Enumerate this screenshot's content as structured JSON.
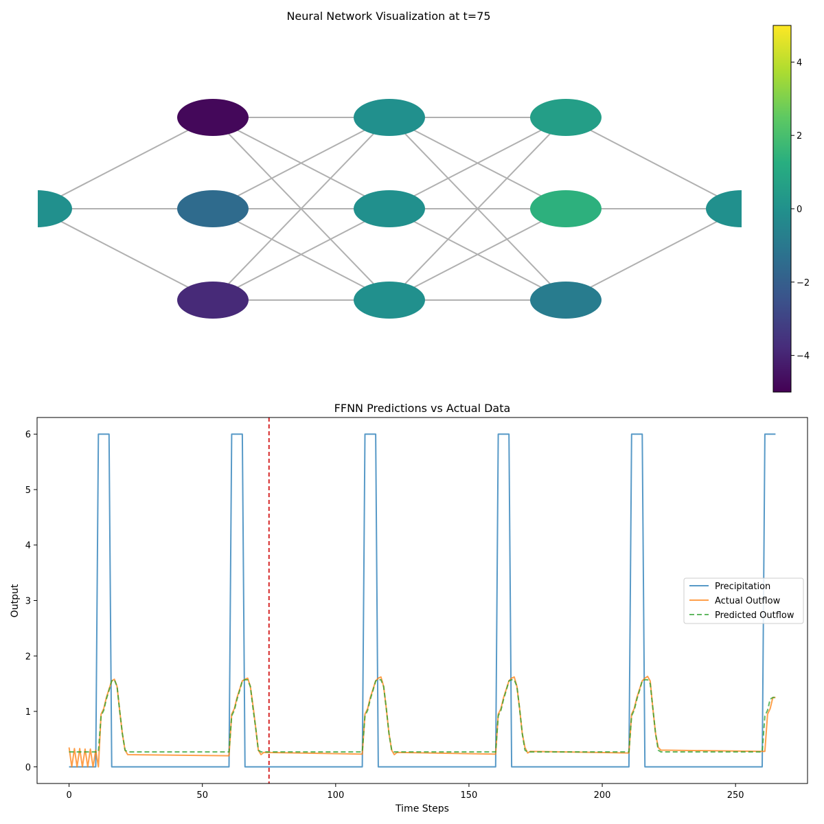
{
  "chart_data": [
    {
      "type": "network",
      "title": "Neural Network Visualization at t=75",
      "layers": [
        [
          0.0
        ],
        [
          -4.8,
          -1.5,
          -3.8
        ],
        [
          0.0,
          0.0,
          0.0
        ],
        [
          0.6,
          1.4,
          -0.8
        ],
        [
          0.0
        ]
      ],
      "colorbar": {
        "vmin": -5,
        "vmax": 5,
        "ticks": [
          -4,
          -2,
          0,
          2,
          4
        ],
        "colormap": "viridis"
      }
    },
    {
      "type": "line",
      "title": "FFNN Predictions vs Actual Data",
      "xlabel": "Time Steps",
      "ylabel": "Output",
      "xlim": [
        -12,
        277
      ],
      "ylim": [
        -0.3,
        6.3
      ],
      "xticks": [
        0,
        50,
        100,
        150,
        200,
        250
      ],
      "yticks": [
        0,
        1,
        2,
        3,
        4,
        5,
        6
      ],
      "marker_x": 75,
      "legend": "center-right",
      "series": [
        {
          "name": "Precipitation",
          "color": "#1f77b4",
          "style": "solid",
          "x": [
            0,
            10,
            11,
            15,
            16,
            60,
            61,
            65,
            66,
            110,
            111,
            115,
            116,
            160,
            161,
            165,
            166,
            210,
            211,
            215,
            216,
            260,
            261,
            265
          ],
          "y": [
            0,
            0,
            6,
            6,
            0,
            0,
            6,
            6,
            0,
            0,
            6,
            6,
            0,
            0,
            6,
            6,
            0,
            0,
            6,
            6,
            0,
            0,
            6,
            6
          ]
        },
        {
          "name": "Actual Outflow",
          "color": "#ff7f0e",
          "style": "solid",
          "x": [
            0,
            1,
            2,
            3,
            4,
            5,
            6,
            7,
            8,
            9,
            10,
            11,
            12,
            13,
            14,
            15,
            16,
            17,
            18,
            19,
            20,
            21,
            22,
            60,
            61,
            62,
            63,
            64,
            65,
            66,
            67,
            68,
            69,
            70,
            71,
            72,
            73,
            110,
            111,
            112,
            113,
            114,
            115,
            116,
            117,
            118,
            119,
            120,
            121,
            122,
            123,
            160,
            161,
            162,
            163,
            164,
            165,
            166,
            167,
            168,
            169,
            170,
            171,
            172,
            173,
            210,
            211,
            212,
            213,
            214,
            215,
            216,
            217,
            218,
            219,
            220,
            221,
            222,
            223,
            224,
            260,
            261,
            262,
            263,
            264,
            265
          ],
          "y": [
            0.35,
            0.0,
            0.33,
            0.0,
            0.33,
            0.0,
            0.32,
            0.0,
            0.32,
            0.0,
            0.3,
            0.0,
            0.95,
            1.05,
            1.25,
            1.4,
            1.55,
            1.58,
            1.45,
            1.0,
            0.6,
            0.3,
            0.22,
            0.2,
            0.95,
            1.05,
            1.25,
            1.4,
            1.55,
            1.58,
            1.6,
            1.45,
            1.1,
            0.7,
            0.3,
            0.22,
            0.26,
            0.23,
            0.95,
            1.05,
            1.25,
            1.4,
            1.55,
            1.6,
            1.62,
            1.45,
            1.05,
            0.6,
            0.3,
            0.22,
            0.26,
            0.23,
            0.95,
            1.05,
            1.25,
            1.4,
            1.55,
            1.6,
            1.62,
            1.45,
            1.05,
            0.6,
            0.35,
            0.25,
            0.28,
            0.25,
            0.95,
            1.05,
            1.25,
            1.4,
            1.55,
            1.6,
            1.63,
            1.55,
            1.05,
            0.6,
            0.35,
            0.3,
            0.3,
            0.3,
            0.28,
            0.28,
            0.95,
            1.05,
            1.25,
            1.25
          ]
        },
        {
          "name": "Predicted Outflow",
          "color": "#2ca02c",
          "style": "dashed",
          "x": [
            0,
            10,
            11,
            12,
            13,
            14,
            15,
            16,
            17,
            18,
            19,
            20,
            21,
            22,
            60,
            61,
            62,
            63,
            64,
            65,
            66,
            67,
            68,
            69,
            70,
            71,
            72,
            110,
            111,
            112,
            113,
            114,
            115,
            116,
            117,
            118,
            119,
            120,
            121,
            122,
            160,
            161,
            162,
            163,
            164,
            165,
            166,
            167,
            168,
            169,
            170,
            171,
            172,
            210,
            211,
            212,
            213,
            214,
            215,
            216,
            217,
            218,
            219,
            220,
            221,
            222,
            260,
            261,
            262,
            263,
            264,
            265
          ],
          "y": [
            0.27,
            0.27,
            0.27,
            0.92,
            1.02,
            1.22,
            1.38,
            1.55,
            1.57,
            1.45,
            1.0,
            0.6,
            0.3,
            0.27,
            0.27,
            0.92,
            1.02,
            1.22,
            1.38,
            1.55,
            1.57,
            1.57,
            1.45,
            1.05,
            0.7,
            0.3,
            0.27,
            0.27,
            0.92,
            1.02,
            1.22,
            1.38,
            1.55,
            1.57,
            1.57,
            1.45,
            1.05,
            0.6,
            0.3,
            0.27,
            0.27,
            0.92,
            1.02,
            1.22,
            1.38,
            1.55,
            1.57,
            1.57,
            1.45,
            1.05,
            0.6,
            0.3,
            0.27,
            0.27,
            0.92,
            1.02,
            1.22,
            1.38,
            1.55,
            1.57,
            1.57,
            1.5,
            1.05,
            0.6,
            0.3,
            0.27,
            0.27,
            0.92,
            1.02,
            1.22,
            1.25,
            1.25
          ]
        }
      ]
    }
  ]
}
